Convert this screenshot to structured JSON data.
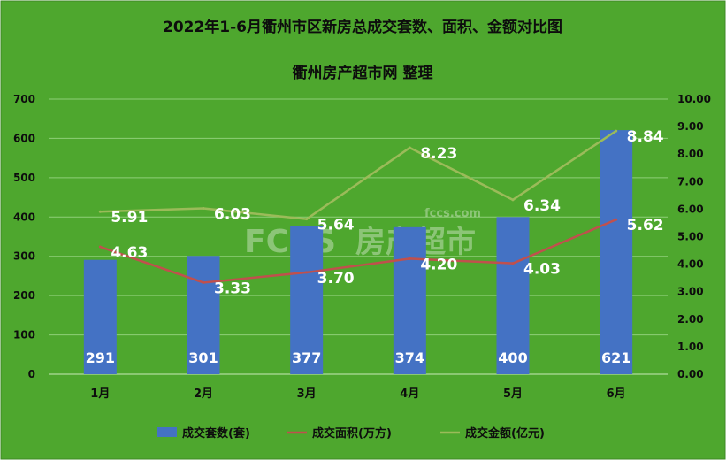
{
  "chart_data": {
    "type": "bar",
    "title": "2022年1-6月衢州市区新房总成交套数、面积、金额对比图",
    "subtitle": "衢州房产超市网 整理",
    "categories": [
      "1月",
      "2月",
      "3月",
      "4月",
      "5月",
      "6月"
    ],
    "series": [
      {
        "name": "成交套数(套)",
        "type": "bar",
        "axis": "left",
        "color": "#4472c4",
        "values": [
          291,
          301,
          377,
          374,
          400,
          621
        ]
      },
      {
        "name": "成交面积(万方)",
        "type": "line",
        "axis": "right",
        "color": "#c0504d",
        "values": [
          4.63,
          3.33,
          3.7,
          4.2,
          4.03,
          5.62
        ]
      },
      {
        "name": "成交金额(亿元)",
        "type": "line",
        "axis": "right",
        "color": "#9bbb59",
        "values": [
          5.91,
          6.03,
          5.64,
          8.23,
          6.34,
          8.84
        ]
      }
    ],
    "y_left": {
      "min": 0,
      "max": 700,
      "step": 100,
      "ticks": [
        "0",
        "100",
        "200",
        "300",
        "400",
        "500",
        "600",
        "700"
      ]
    },
    "y_right": {
      "min": 0,
      "max": 10,
      "step": 1,
      "ticks": [
        "0.00",
        "1.00",
        "2.00",
        "3.00",
        "4.00",
        "5.00",
        "6.00",
        "7.00",
        "8.00",
        "9.00",
        "10.00"
      ]
    },
    "grid": true,
    "legend_position": "bottom",
    "background": "#4ea72e"
  },
  "watermark": {
    "site": "fccs.com",
    "brand_latin": "FCCS",
    "brand_cn": "房产超市"
  }
}
